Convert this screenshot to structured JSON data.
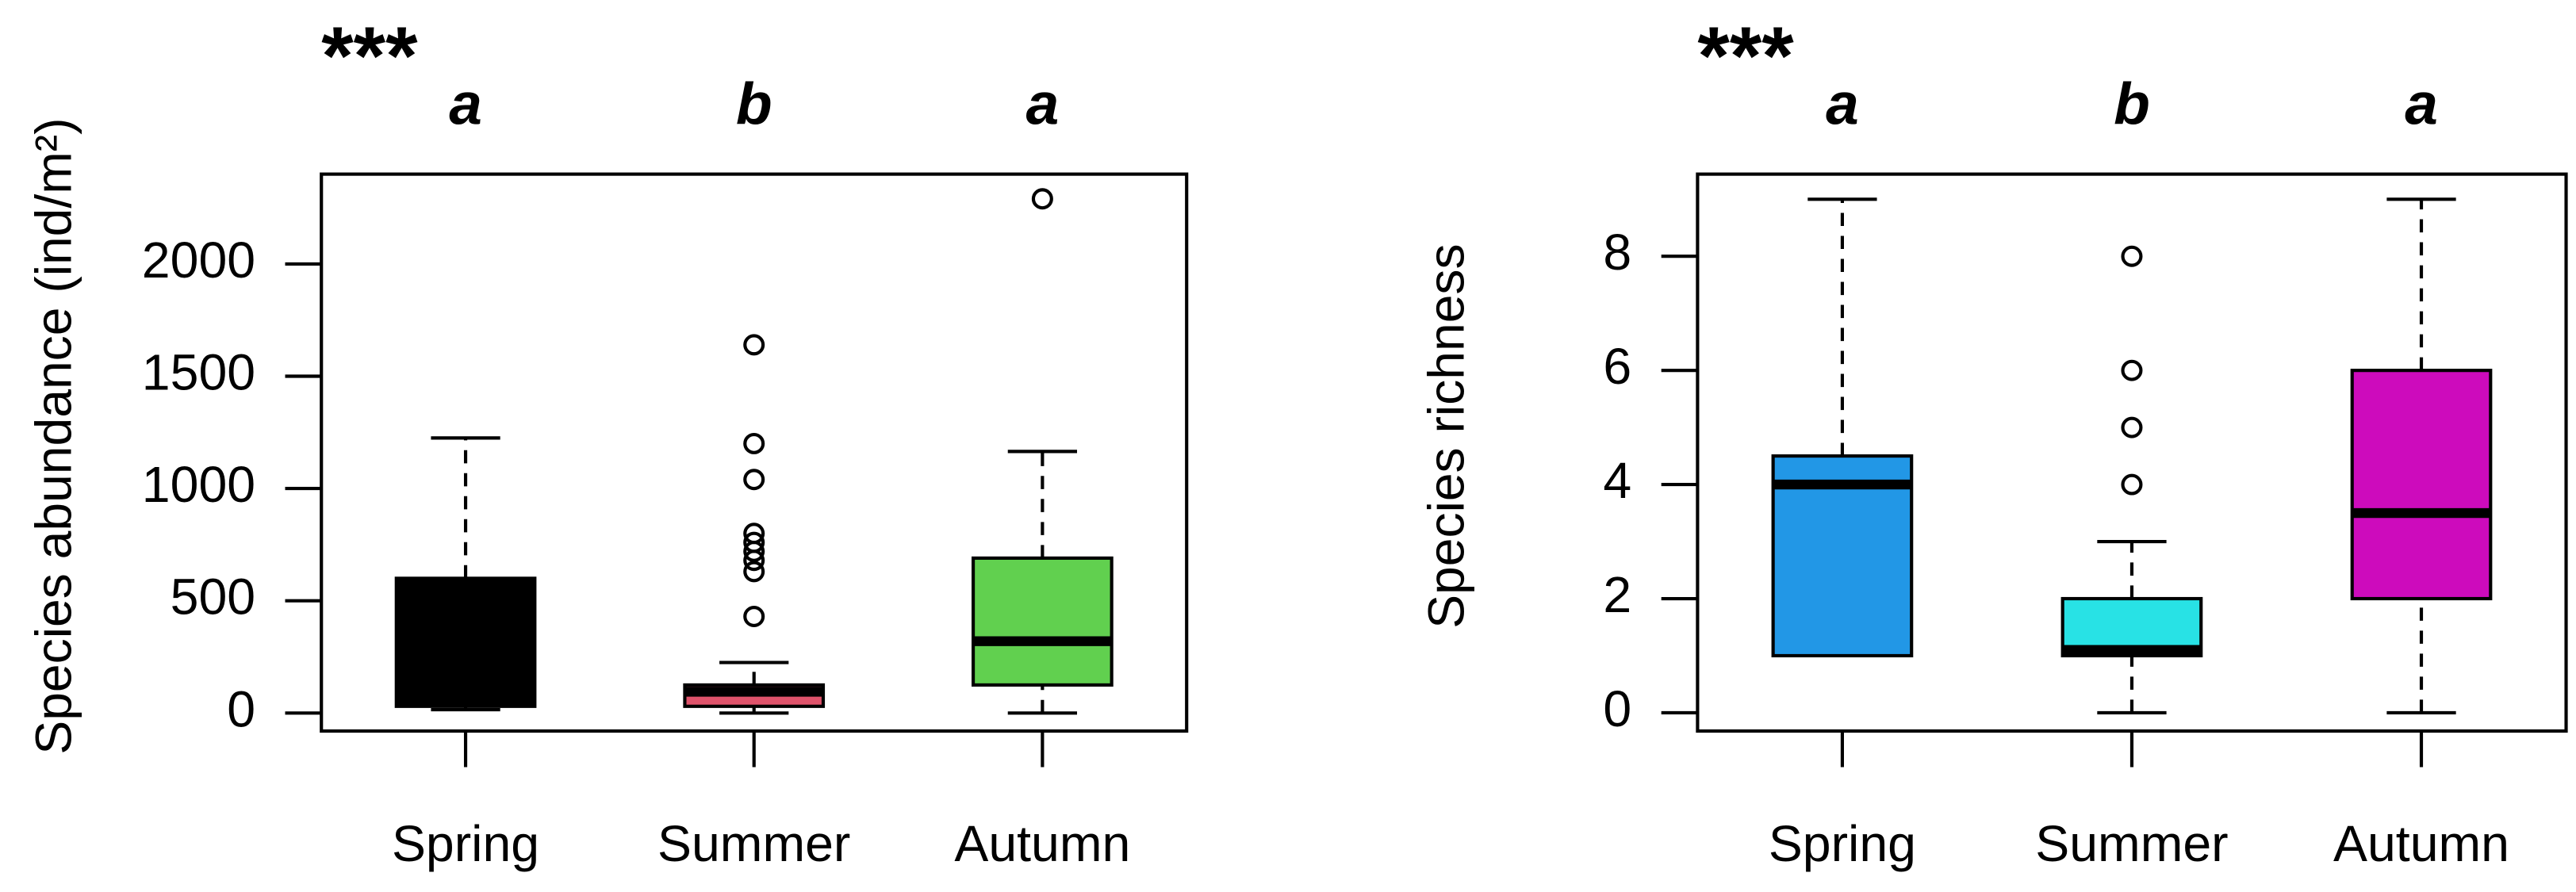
{
  "chart_data": [
    {
      "type": "box",
      "ylabel": "Species abundance (ind/m²)",
      "significance": "***",
      "letters": [
        "a",
        "b",
        "a"
      ],
      "categories": [
        "Spring",
        "Summer",
        "Autumn"
      ],
      "boxes": [
        {
          "color": "#000000",
          "min": 15,
          "q1": 30,
          "median": 60,
          "q3": 600,
          "max": 1225,
          "outliers": []
        },
        {
          "color": "#DF536B",
          "min": 0,
          "q1": 30,
          "median": 95,
          "q3": 125,
          "max": 225,
          "outliers": [
            1640,
            1200,
            1040,
            800,
            760,
            720,
            680,
            630,
            430
          ]
        },
        {
          "color": "#61D04F",
          "min": 0,
          "q1": 125,
          "median": 320,
          "q3": 690,
          "max": 1165,
          "outliers": [
            2290
          ]
        }
      ],
      "ylim": [
        -80,
        2400
      ],
      "yticks": [
        0,
        500,
        1000,
        1500,
        2000
      ]
    },
    {
      "type": "box",
      "ylabel": "Species richness",
      "significance": "***",
      "letters": [
        "a",
        "b",
        "a"
      ],
      "categories": [
        "Spring",
        "Summer",
        "Autumn"
      ],
      "boxes": [
        {
          "color": "#2297E6",
          "min": 1,
          "q1": 1,
          "median": 4,
          "q3": 4.5,
          "max": 9,
          "outliers": []
        },
        {
          "color": "#28E2E5",
          "min": 0,
          "q1": 1,
          "median": 1.1,
          "q3": 2,
          "max": 3,
          "outliers": [
            4,
            5,
            6,
            8
          ]
        },
        {
          "color": "#CD0BBC",
          "min": 0,
          "q1": 2,
          "median": 3.5,
          "q3": 6,
          "max": 9,
          "outliers": []
        }
      ],
      "ylim": [
        -0.32,
        9.44
      ],
      "yticks": [
        0,
        2,
        4,
        6,
        8
      ]
    }
  ]
}
